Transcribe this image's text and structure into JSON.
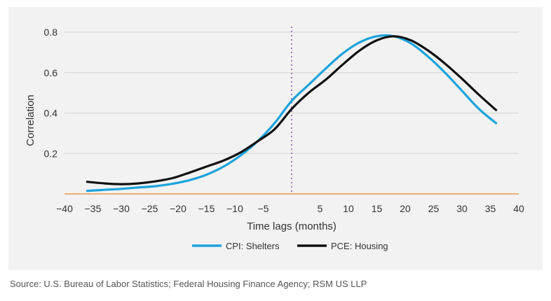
{
  "chart_data": {
    "type": "line",
    "title": "",
    "xlabel": "Time lags (months)",
    "ylabel": "Correlation",
    "xlim": [
      -40,
      40
    ],
    "ylim": [
      0,
      0.8
    ],
    "xticks": [
      -40,
      -35,
      -30,
      -25,
      -20,
      -15,
      -10,
      -5,
      5,
      10,
      15,
      20,
      25,
      30,
      35,
      40
    ],
    "yticks": [
      0.2,
      0.4,
      0.6,
      0.8
    ],
    "grid": "horizontal",
    "legend": "bottom-center",
    "vline": 0,
    "colors": {
      "grid": "#d4d4d4",
      "zero_line": "#e8892c",
      "vline": "#a07cc5"
    },
    "series": [
      {
        "name": "CPI: Shelters",
        "color": "#1aa3dc",
        "x": [
          -36,
          -33,
          -30,
          -27,
          -24,
          -21,
          -18,
          -15,
          -12,
          -9,
          -6,
          -3,
          0,
          3,
          6,
          9,
          12,
          15,
          18,
          21,
          24,
          27,
          30,
          33,
          36
        ],
        "y": [
          0.015,
          0.02,
          0.025,
          0.032,
          0.038,
          0.05,
          0.068,
          0.095,
          0.135,
          0.19,
          0.26,
          0.35,
          0.46,
          0.54,
          0.62,
          0.695,
          0.75,
          0.78,
          0.78,
          0.745,
          0.68,
          0.6,
          0.51,
          0.42,
          0.35
        ]
      },
      {
        "name": "PCE: Housing",
        "color": "#111111",
        "x": [
          -36,
          -33,
          -30,
          -27,
          -24,
          -21,
          -18,
          -15,
          -12,
          -9,
          -6,
          -3,
          0,
          3,
          6,
          9,
          12,
          15,
          18,
          21,
          24,
          27,
          30,
          33,
          36
        ],
        "y": [
          0.06,
          0.052,
          0.048,
          0.052,
          0.062,
          0.078,
          0.105,
          0.135,
          0.165,
          0.205,
          0.26,
          0.32,
          0.42,
          0.5,
          0.565,
          0.64,
          0.71,
          0.76,
          0.78,
          0.76,
          0.71,
          0.645,
          0.57,
          0.49,
          0.415
        ]
      }
    ]
  },
  "source": "Source: U.S. Bureau of Labor Statistics; Federal Housing Finance Agency; RSM US LLP"
}
